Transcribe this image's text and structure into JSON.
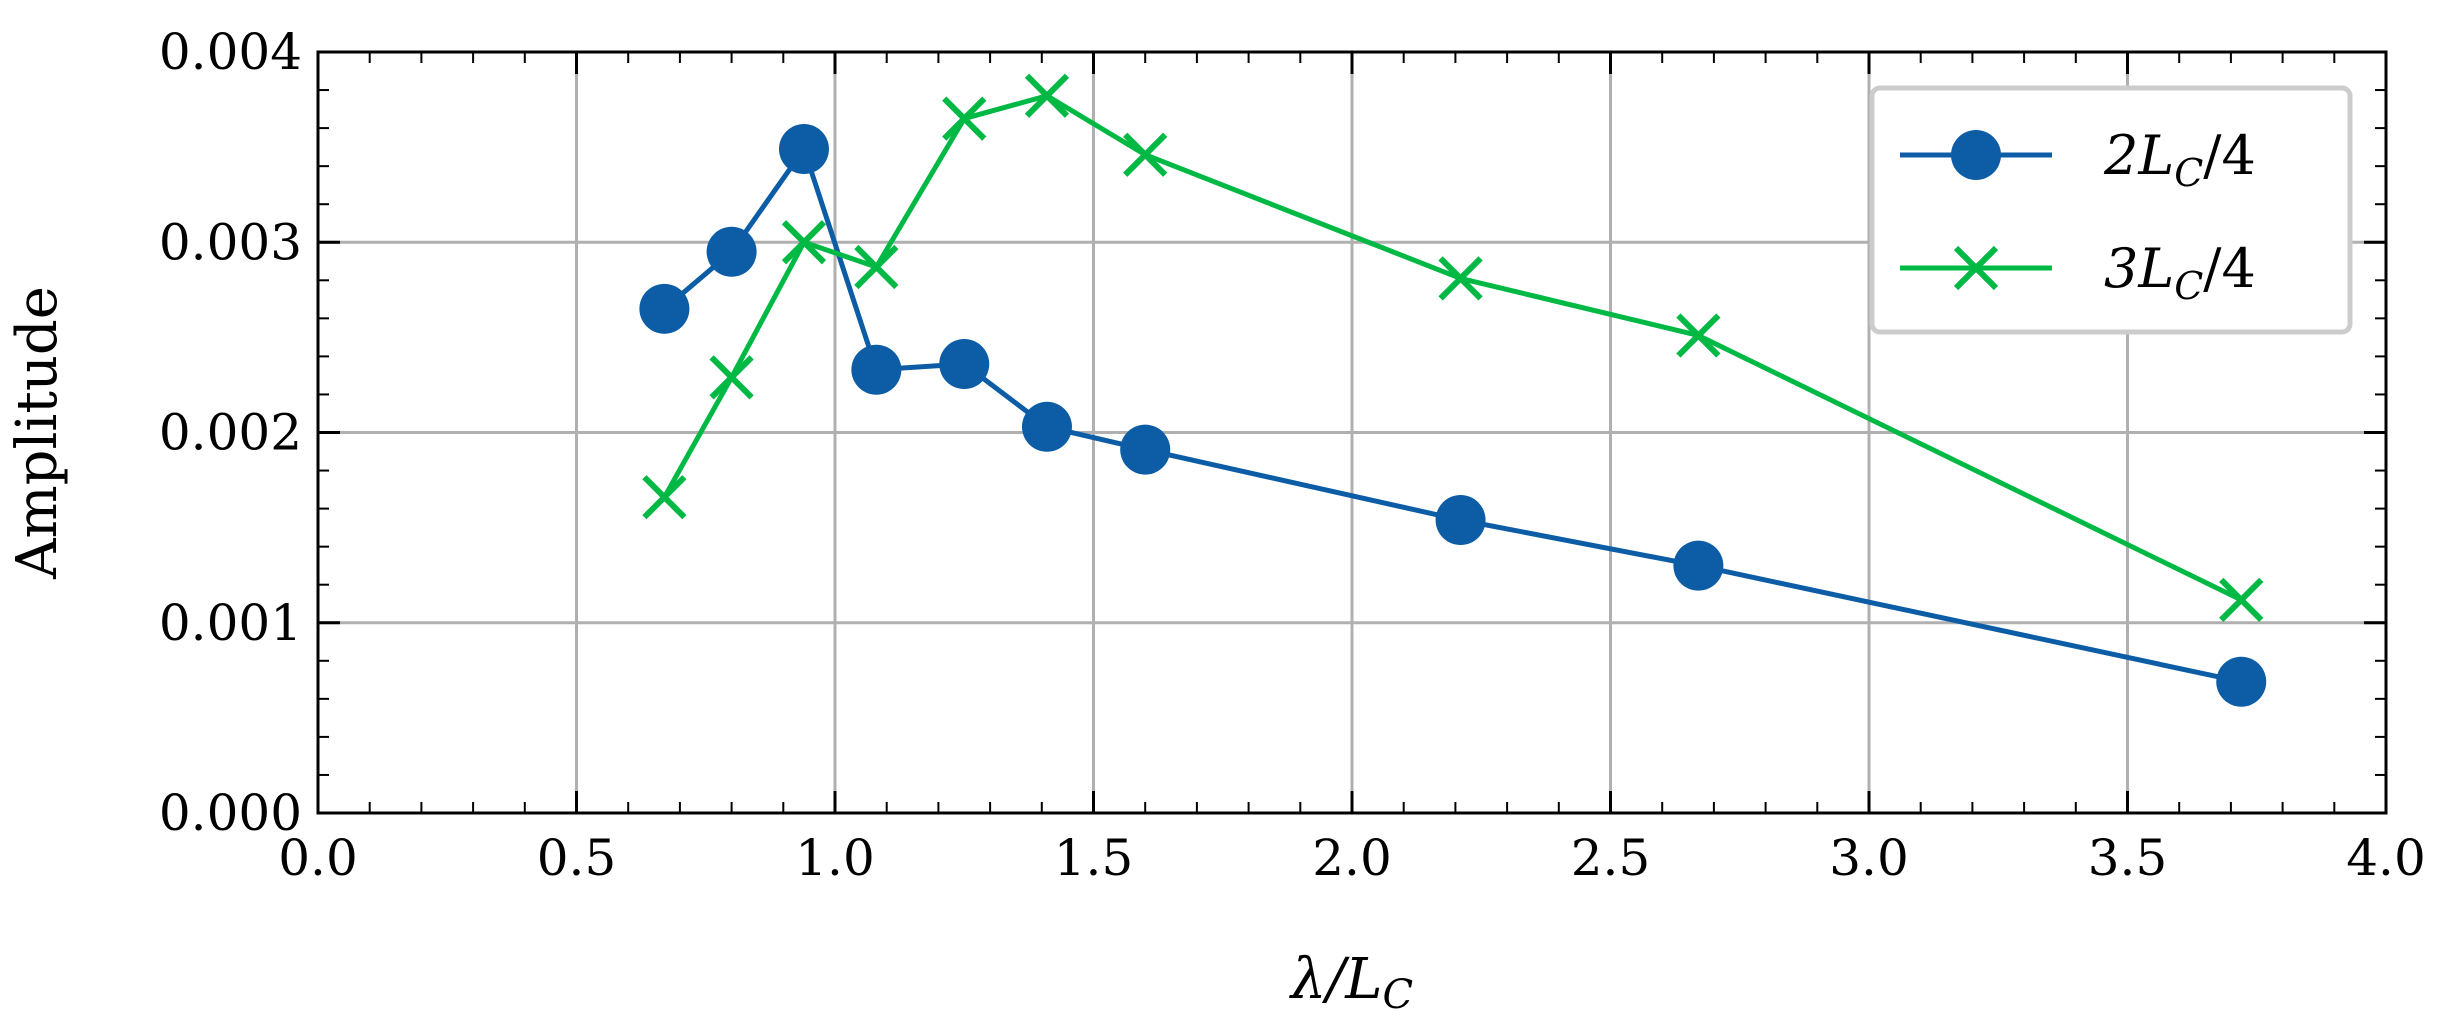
{
  "chart_data": {
    "type": "line",
    "title": "",
    "xlabel": "λ/L_C",
    "ylabel": "Amplitude",
    "xlim": [
      0.0,
      4.0
    ],
    "ylim": [
      0.0,
      0.004
    ],
    "x_ticks": [
      "0.0",
      "0.5",
      "1.0",
      "1.5",
      "2.0",
      "2.5",
      "3.0",
      "3.5",
      "4.0"
    ],
    "y_ticks": [
      "0.000",
      "0.001",
      "0.002",
      "0.003",
      "0.004"
    ],
    "grid": true,
    "legend_position": "top-right",
    "series": [
      {
        "name": "2L_C/4",
        "label_main": "2L",
        "label_sub": "C",
        "label_tail": "/4",
        "color": "#0C5DA5",
        "marker": "circle",
        "x": [
          0.67,
          0.8,
          0.94,
          1.08,
          1.25,
          1.41,
          1.6,
          2.21,
          2.67,
          3.72
        ],
        "y": [
          0.00265,
          0.00295,
          0.00349,
          0.00233,
          0.00236,
          0.00203,
          0.00191,
          0.00154,
          0.0013,
          0.00069
        ]
      },
      {
        "name": "3L_C/4",
        "label_main": "3L",
        "label_sub": "C",
        "label_tail": "/4",
        "color": "#00B945",
        "marker": "x",
        "x": [
          0.67,
          0.8,
          0.94,
          1.08,
          1.25,
          1.41,
          1.6,
          2.21,
          2.67,
          3.72
        ],
        "y": [
          0.00166,
          0.00229,
          0.003,
          0.00287,
          0.00365,
          0.00377,
          0.00346,
          0.00281,
          0.00251,
          0.00112
        ]
      }
    ]
  },
  "axis": {
    "x_label_main": "λ/L",
    "x_label_sub": "C"
  }
}
